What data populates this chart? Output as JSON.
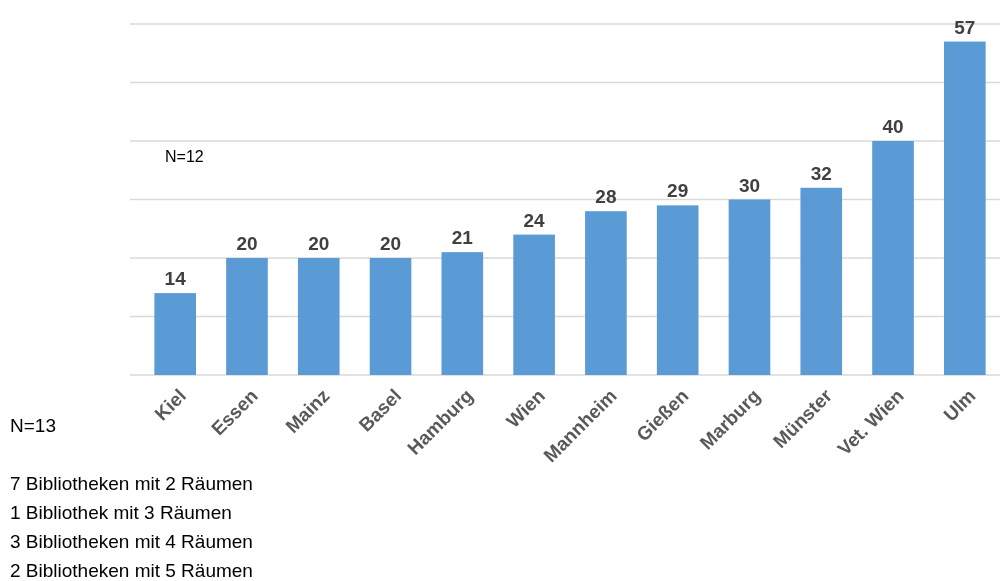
{
  "chart_data": {
    "type": "bar",
    "categories": [
      "Kiel",
      "Essen",
      "Mainz",
      "Basel",
      "Hamburg",
      "Wien",
      "Mannheim",
      "Gießen",
      "Marburg",
      "Münster",
      "Vet. Wien",
      "Ulm"
    ],
    "values": [
      14,
      20,
      20,
      20,
      21,
      24,
      28,
      29,
      30,
      32,
      40,
      57
    ],
    "color": "#5b9bd5",
    "data_labels": true,
    "grid": "y",
    "ylim": [
      0,
      60
    ],
    "yticks": [
      {
        "value": 0,
        "label": null
      },
      {
        "value": 10,
        "label": null
      },
      {
        "value": 20,
        "label": null
      },
      {
        "value": 30,
        "label": null
      },
      {
        "value": 40,
        "label": null
      },
      {
        "value": 50,
        "label": null
      },
      {
        "value": 60,
        "label": null
      }
    ],
    "tick_labels": "x",
    "annotations": [
      "N=12",
      "N=13",
      "7 Bibliotheken mit 2 Räumen",
      "1 Bibliothek mit 3 Räumen",
      "3 Bibliotheken mit 4 Räumen",
      "2 Bibliotheken mit 5 Räumen"
    ]
  }
}
